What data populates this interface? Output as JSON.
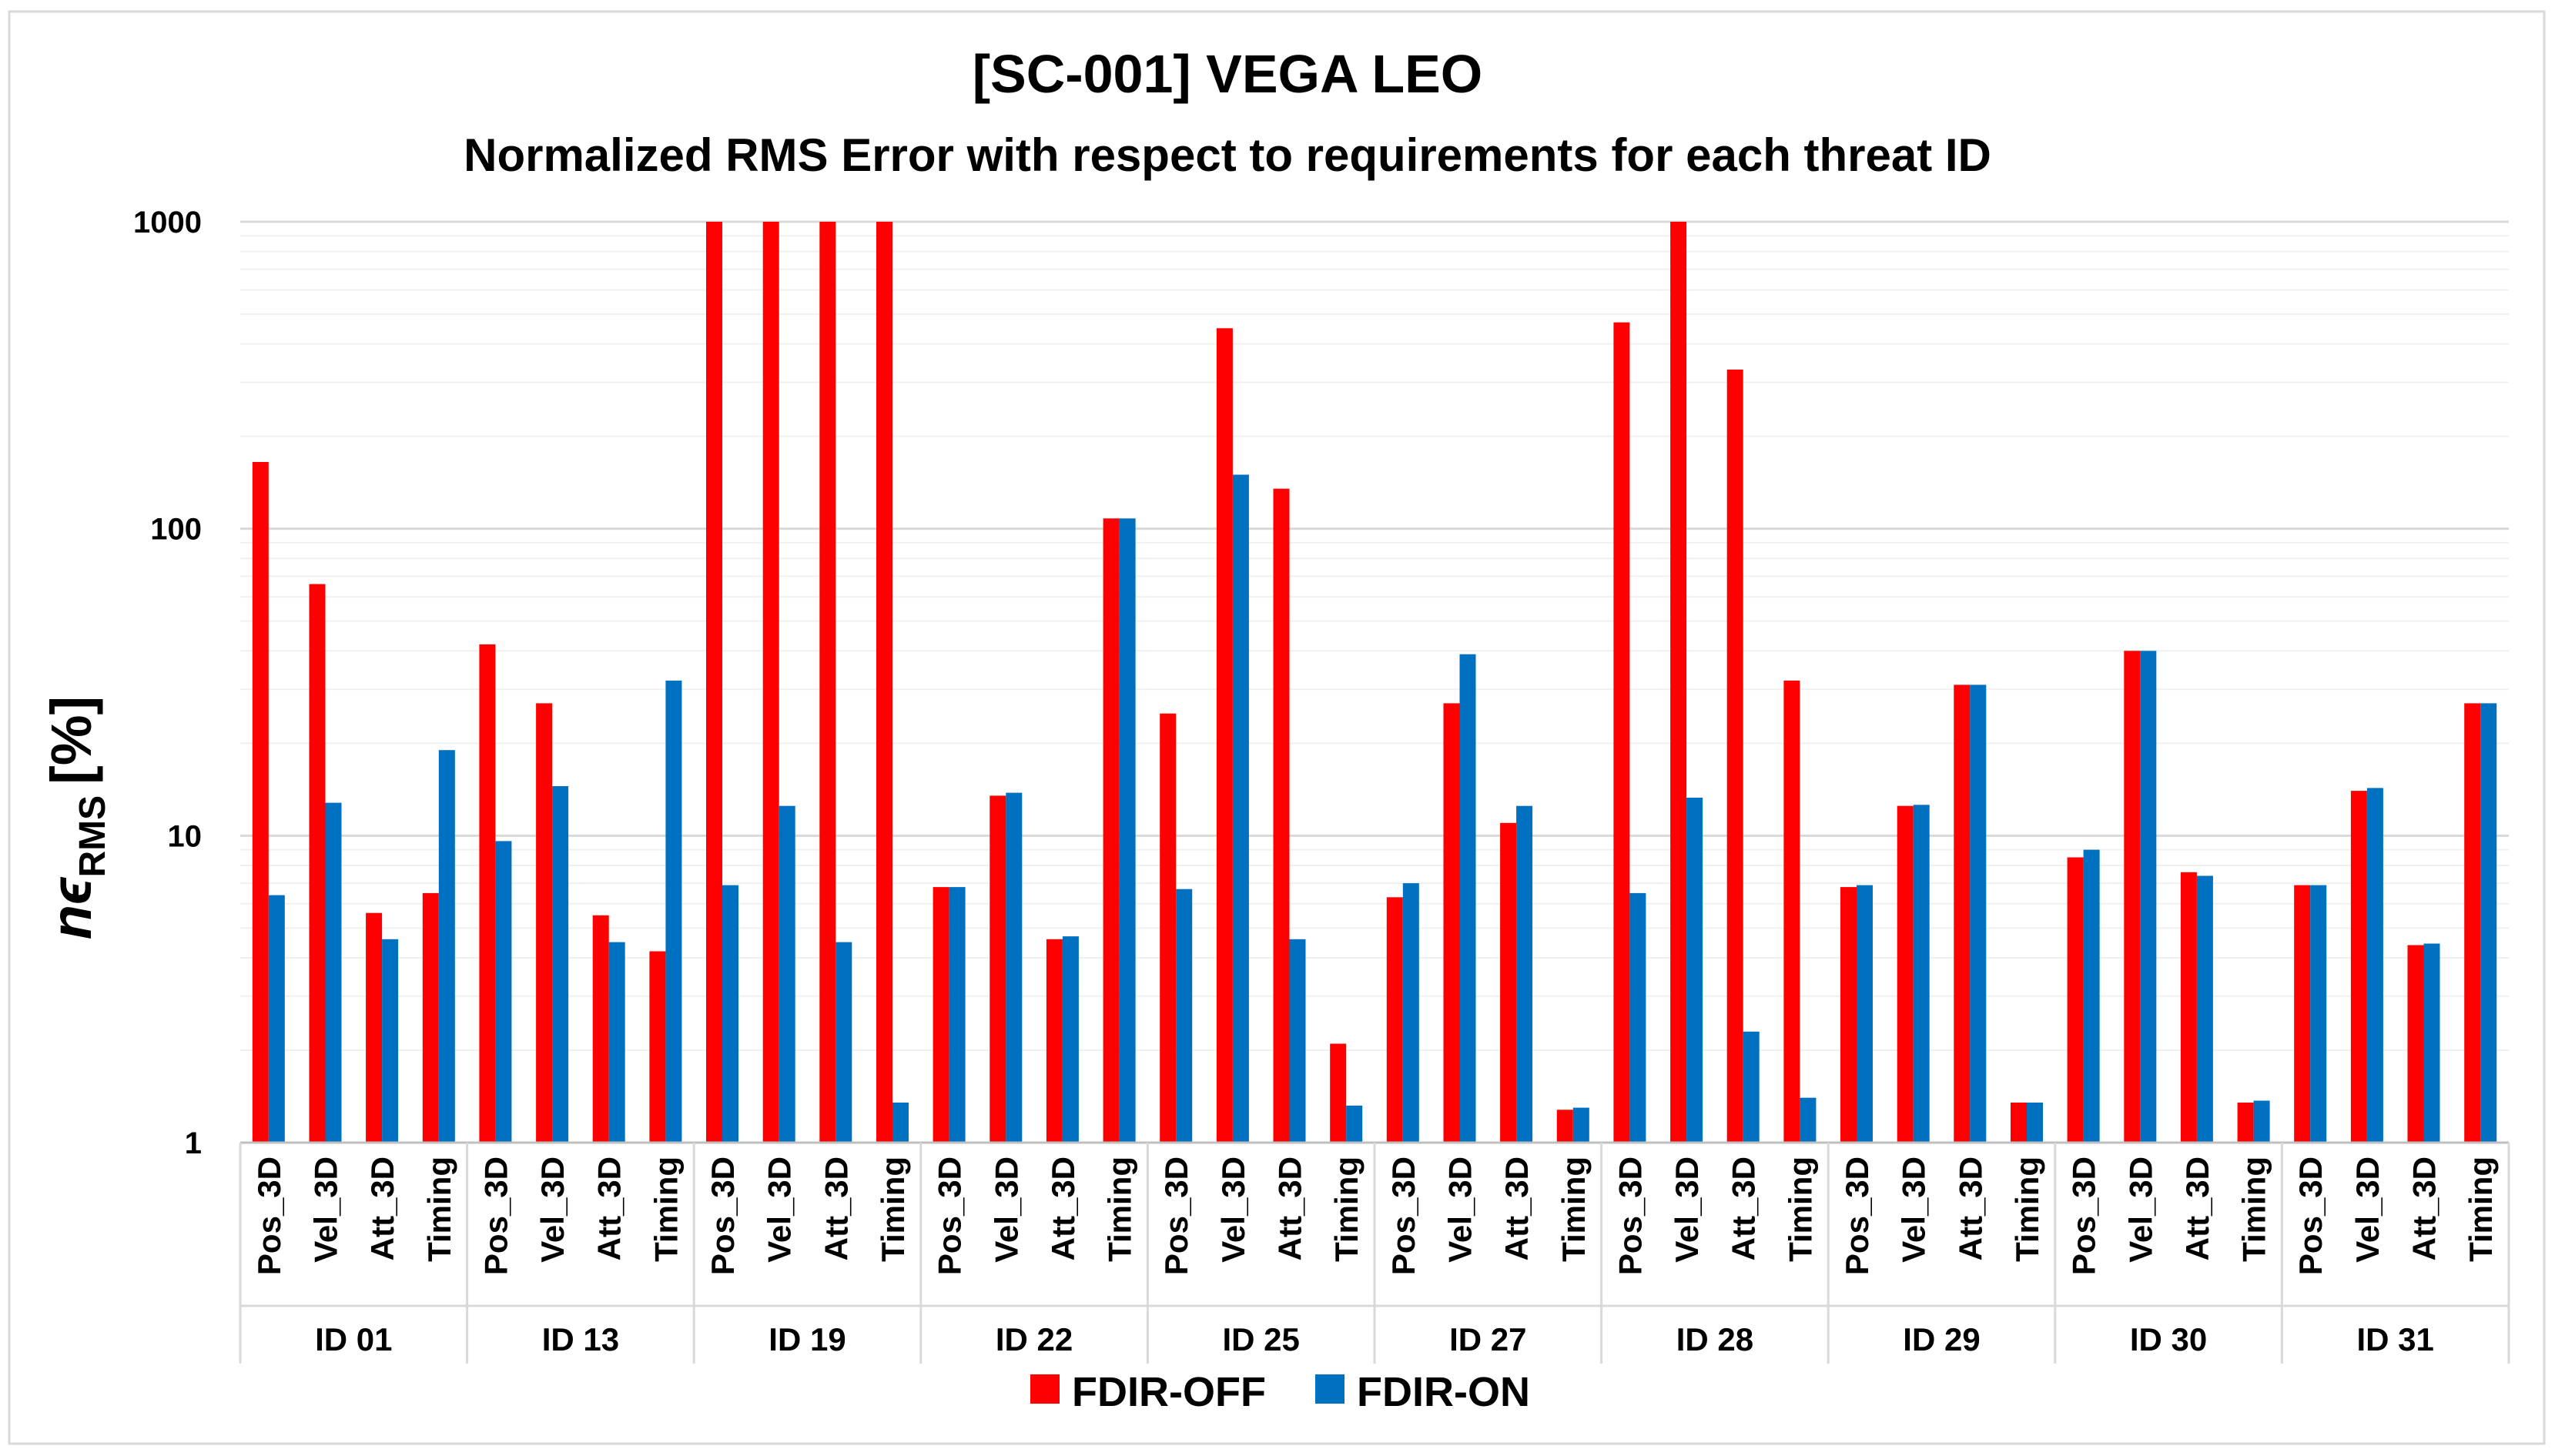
{
  "chart_data": {
    "type": "bar",
    "title": "[SC-001] VEGA LEO",
    "subtitle": "Normalized RMS Error with respect to requirements for each threat ID",
    "ylabel_main": "nϵ",
    "ylabel_sub": "RMS",
    "ylabel_unit": "[%]",
    "yscale": "log",
    "ylim": [
      1,
      1000
    ],
    "yticks": [
      1,
      10,
      100,
      1000
    ],
    "ytick_labels": [
      "1",
      "10",
      "100",
      "1000"
    ],
    "groups": [
      "ID 01",
      "ID 13",
      "ID 19",
      "ID 22",
      "ID 25",
      "ID 27",
      "ID 28",
      "ID 29",
      "ID 30",
      "ID 31"
    ],
    "metrics": [
      "Pos_3D",
      "Vel_3D",
      "Att_3D",
      "Timing"
    ],
    "series": [
      {
        "name": "FDIR-OFF",
        "color": "#ff0000",
        "values": [
          165,
          66,
          5.6,
          6.5,
          42,
          27,
          5.5,
          4.2,
          1000,
          1000,
          1000,
          1000,
          6.8,
          13.5,
          4.6,
          108,
          25,
          450,
          135,
          2.1,
          6.3,
          27,
          11,
          1.28,
          470,
          1000,
          330,
          32,
          6.8,
          12.5,
          31,
          1.35,
          8.5,
          40,
          7.6,
          1.35,
          6.9,
          14,
          4.4,
          27
        ]
      },
      {
        "name": "FDIR-ON",
        "color": "#0070c0",
        "values": [
          6.4,
          12.8,
          4.6,
          19,
          9.6,
          14.5,
          4.5,
          32,
          6.9,
          12.5,
          4.5,
          1.35,
          6.8,
          13.8,
          4.7,
          108,
          6.7,
          150,
          4.6,
          1.32,
          7.0,
          39,
          12.5,
          1.3,
          6.5,
          13.3,
          2.3,
          1.4,
          6.9,
          12.6,
          31,
          1.35,
          9.0,
          40,
          7.4,
          1.37,
          6.9,
          14.3,
          4.45,
          27
        ]
      }
    ],
    "legend_position": "bottom-center",
    "grid": true
  }
}
